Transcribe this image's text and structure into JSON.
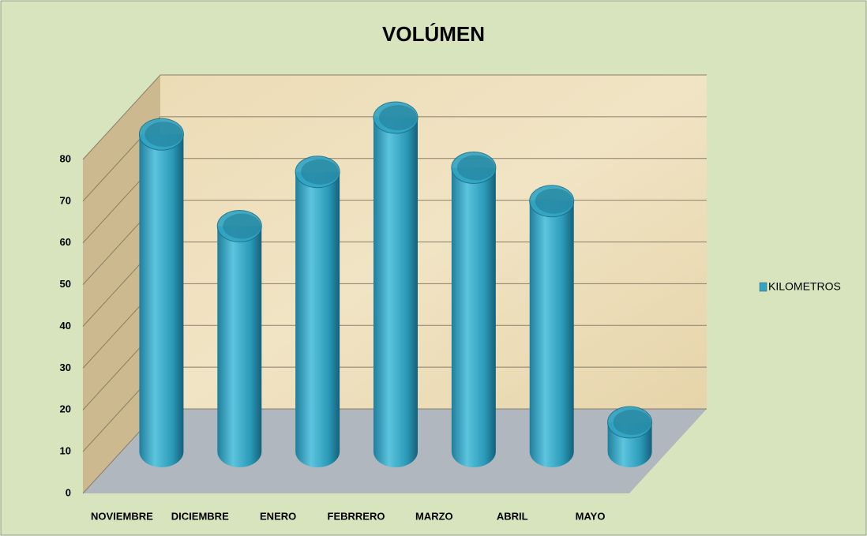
{
  "chart_data": {
    "type": "bar3d",
    "title": "VOLÚMEN",
    "categories": [
      "NOVIEMBRE",
      "DICIEMBRE",
      "ENERO",
      "FEBRRERO",
      "MARZO",
      "ABRIL",
      "MAYO"
    ],
    "series": [
      {
        "name": "KILOMETROS",
        "color": "#31a5c4",
        "values": [
          76,
          54,
          67,
          80,
          68,
          60,
          7
        ]
      }
    ],
    "ylim": [
      0,
      80
    ],
    "yticks": [
      0,
      10,
      20,
      30,
      40,
      50,
      60,
      70,
      80
    ],
    "grid": true,
    "legend": "right"
  }
}
